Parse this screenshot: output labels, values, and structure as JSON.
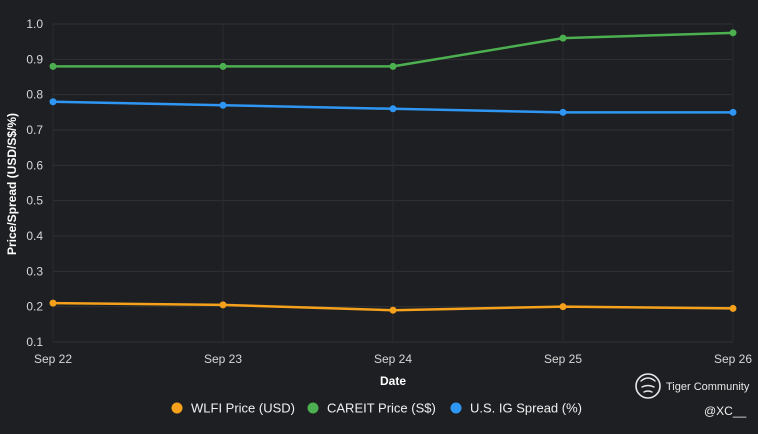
{
  "chart_data": {
    "type": "line",
    "title": "",
    "xlabel": "Date",
    "ylabel": "Price/Spread (USD/S$/%)",
    "categories": [
      "Sep 22",
      "Sep 23",
      "Sep 24",
      "Sep 25",
      "Sep 26"
    ],
    "ylim": [
      0.1,
      1.0
    ],
    "yticks": [
      0.1,
      0.2,
      0.3,
      0.4,
      0.5,
      0.6,
      0.7,
      0.8,
      0.9,
      1.0
    ],
    "grid": true,
    "legend_position": "bottom-center",
    "series": [
      {
        "name": "WLFI Price (USD)",
        "color": "#f5a11c",
        "values": [
          0.21,
          0.205,
          0.19,
          0.2,
          0.195
        ]
      },
      {
        "name": "CAREIT Price (S$)",
        "color": "#4caf50",
        "values": [
          0.88,
          0.88,
          0.88,
          0.96,
          0.975
        ]
      },
      {
        "name": "U.S. IG Spread (%)",
        "color": "#2f96f3",
        "values": [
          0.78,
          0.77,
          0.76,
          0.75,
          0.75
        ]
      }
    ]
  },
  "watermark": {
    "brand": "Tiger Community",
    "icon": "tiger-logo-icon",
    "handle": "@XC__"
  }
}
